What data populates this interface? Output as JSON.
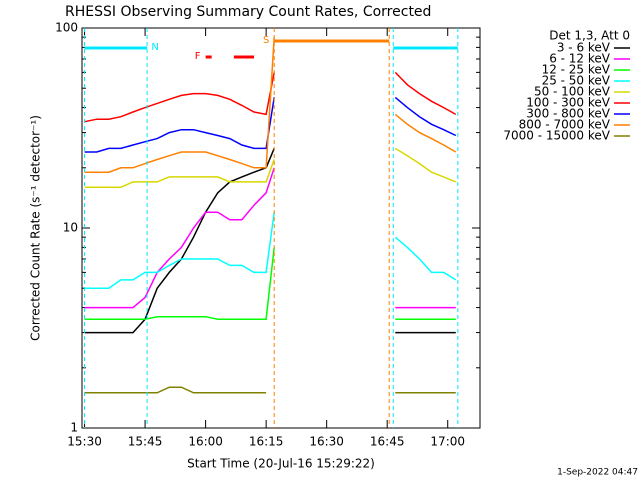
{
  "chart_data": {
    "type": "line",
    "title": "RHESSI Observing Summary Count Rates, Corrected",
    "xlabel": "Start Time (20-Jul-16 15:29:22)",
    "ylabel": "Corrected Count Rate (s⁻¹ detector⁻¹)",
    "footer": "1-Sep-2022 04:47",
    "legend_title": "Det 1,3, Att 0",
    "legend": "outside-right",
    "log_y": true,
    "xlim": [
      "15:29:22",
      "17:08"
    ],
    "xticks": [
      "15:30",
      "15:45",
      "16:00",
      "16:15",
      "16:30",
      "16:45",
      "17:00"
    ],
    "ylim": [
      1,
      100
    ],
    "yticks": [
      1,
      10,
      100
    ],
    "yminorticks": [
      2,
      3,
      4,
      5,
      6,
      7,
      8,
      9,
      20,
      30,
      40,
      50,
      60,
      70,
      80,
      90
    ],
    "x": [
      "15:30",
      "15:33",
      "15:36",
      "15:39",
      "15:42",
      "15:45",
      "15:48",
      "15:51",
      "15:54",
      "15:57",
      "16:00",
      "16:03",
      "16:06",
      "16:09",
      "16:12",
      "16:15",
      "16:17",
      "16:32",
      "16:47",
      "16:50",
      "16:53",
      "16:56",
      "16:59",
      "17:02"
    ],
    "series": [
      {
        "name": "3 - 6 keV",
        "color": "#000000",
        "values": [
          3,
          3,
          3,
          3,
          3,
          3.5,
          5,
          6,
          7,
          9,
          12,
          15,
          17,
          18,
          19,
          20,
          25,
          null,
          3,
          3,
          3,
          3,
          3,
          3
        ]
      },
      {
        "name": "6 - 12 keV",
        "color": "#ff00ff",
        "values": [
          4,
          4,
          4,
          4,
          4,
          4.5,
          6,
          7,
          8,
          10,
          12,
          12,
          11,
          11,
          13,
          15,
          20,
          null,
          4,
          4,
          4,
          4,
          4,
          4
        ]
      },
      {
        "name": "12 - 25 keV",
        "color": "#00ff00",
        "values": [
          3.5,
          3.5,
          3.5,
          3.5,
          3.5,
          3.5,
          3.6,
          3.6,
          3.6,
          3.6,
          3.6,
          3.5,
          3.5,
          3.5,
          3.5,
          3.5,
          8,
          null,
          3.5,
          3.5,
          3.5,
          3.5,
          3.5,
          3.5
        ]
      },
      {
        "name": "25 - 50 keV",
        "color": "#00ffff",
        "values": [
          5,
          5,
          5,
          5.5,
          5.5,
          6,
          6,
          6.5,
          7,
          7,
          7,
          7,
          6.5,
          6.5,
          6,
          6,
          12,
          null,
          9,
          8,
          7,
          6,
          6,
          5.5
        ]
      },
      {
        "name": "50 - 100 keV",
        "color": "#d8d800",
        "values": [
          16,
          16,
          16,
          16,
          17,
          17,
          17,
          18,
          18,
          18,
          18,
          18,
          17,
          17,
          17,
          17,
          22,
          null,
          25,
          23,
          21,
          19,
          18,
          17
        ]
      },
      {
        "name": "100 - 300 keV",
        "color": "#ff0000",
        "values": [
          34,
          35,
          35,
          36,
          38,
          40,
          42,
          44,
          46,
          47,
          47,
          46,
          44,
          41,
          38,
          37,
          60,
          null,
          60,
          52,
          47,
          43,
          40,
          37
        ]
      },
      {
        "name": "300 - 800 keV",
        "color": "#0000ff",
        "values": [
          24,
          24,
          25,
          25,
          26,
          27,
          28,
          30,
          31,
          31,
          30,
          29,
          28,
          26,
          25,
          25,
          45,
          null,
          45,
          40,
          36,
          33,
          31,
          29
        ]
      },
      {
        "name": "800 - 7000 keV",
        "color": "#ff8000",
        "values": [
          19,
          19,
          19,
          20,
          20,
          21,
          22,
          23,
          24,
          24,
          24,
          23,
          22,
          21,
          20,
          20,
          90,
          null,
          37,
          33,
          30,
          28,
          26,
          24
        ]
      },
      {
        "name": "7000 - 15000 keV",
        "color": "#808000",
        "values": [
          1.5,
          1.5,
          1.5,
          1.5,
          1.5,
          1.5,
          1.5,
          1.6,
          1.6,
          1.5,
          1.5,
          1.5,
          1.5,
          1.5,
          1.5,
          1.5,
          null,
          null,
          1.5,
          1.5,
          1.5,
          1.5,
          1.5,
          1.5
        ]
      }
    ],
    "annotations": [
      {
        "label": "N",
        "color": "#00e8ff",
        "dashed": true,
        "intervals": [
          [
            "15:30",
            "15:45:30"
          ],
          [
            "16:46:30",
            "17:02:30"
          ]
        ]
      },
      {
        "label": "S",
        "color": "#ff8000",
        "dashed": true,
        "intervals": [
          [
            "16:17",
            "16:45:30"
          ]
        ]
      },
      {
        "label": "F",
        "color": "#ff0000",
        "dashed": false,
        "intervals": [
          [
            "16:00",
            "16:01:30"
          ],
          [
            "16:07",
            "16:12"
          ]
        ]
      }
    ]
  }
}
